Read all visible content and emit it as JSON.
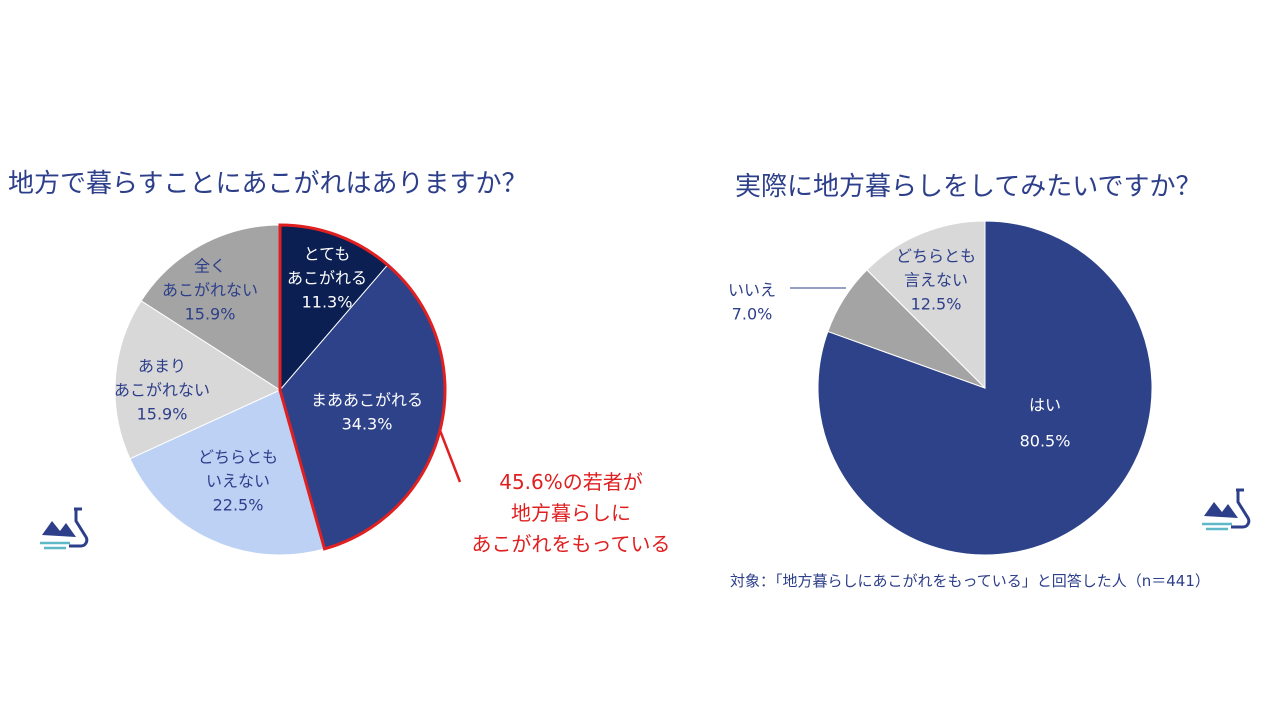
{
  "chart_data": [
    {
      "type": "pie",
      "title": "地方で暮らすことにあこがれはありますか？",
      "slices": [
        {
          "label": "とても\nあこがれる",
          "value": 11.3,
          "display": "11.3%",
          "color": "#0b1f52",
          "text_color": "#ffffff"
        },
        {
          "label": "まああこがれる",
          "value": 34.3,
          "display": "34.3%",
          "color": "#2e428a",
          "text_color": "#ffffff"
        },
        {
          "label": "どちらとも\nいえない",
          "value": 22.5,
          "display": "22.5%",
          "color": "#bcd1f4",
          "text_color": "#2d3f8a"
        },
        {
          "label": "あまり\nあこがれない",
          "value": 15.9,
          "display": "15.9%",
          "color": "#d8d8d8",
          "text_color": "#2d3f8a"
        },
        {
          "label": "全く\nあこがれない",
          "value": 15.9,
          "display": "15.9%",
          "color": "#a4a4a4",
          "text_color": "#2d3f8a"
        }
      ],
      "highlight": {
        "slices": [
          0,
          1
        ],
        "color": "#e02020",
        "text_lines": [
          "45.6%の若者が",
          "地方暮らしに",
          "あこがれをもっている"
        ]
      }
    },
    {
      "type": "pie",
      "title": "実際に地方暮らしをしてみたいですか？",
      "slices": [
        {
          "label": "はい",
          "value": 80.5,
          "display": "80.5%",
          "color": "#2e428a",
          "text_color": "#ffffff"
        },
        {
          "label": "いいえ",
          "value": 7.0,
          "display": "7.0%",
          "color": "#a4a4a4",
          "text_color": "#2d3f8a"
        },
        {
          "label": "どちらとも\n言えない",
          "value": 12.5,
          "display": "12.5%",
          "color": "#d8d8d8",
          "text_color": "#2d3f8a"
        }
      ],
      "note": "対象：「地方暮らしにあこがれをもっている」と回答した人（n＝441）"
    }
  ],
  "icons": {
    "logo": "flask-landscape-icon"
  }
}
